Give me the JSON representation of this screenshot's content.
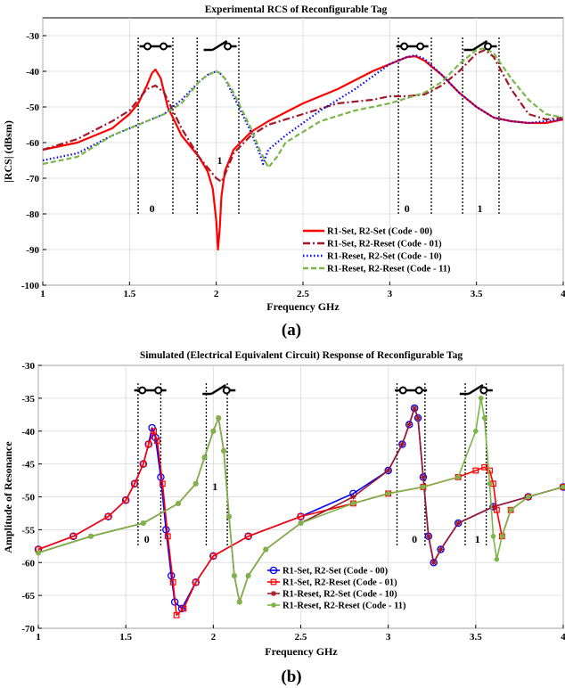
{
  "chart_data": [
    {
      "type": "line",
      "title": "Experimental RCS of Reconfigurable Tag",
      "xlabel": "Frequency GHz",
      "ylabel": "|RCS| (dBsm)",
      "xlim": [
        1,
        4
      ],
      "ylim": [
        -100,
        -25
      ],
      "xticks": [
        "1",
        "1.5",
        "2",
        "2.5",
        "3",
        "3.5",
        "4"
      ],
      "yticks": [
        "-100",
        "-90",
        "-80",
        "-70",
        "-60",
        "-50",
        "-40",
        "-30"
      ],
      "caption": "(a)",
      "legend_position": "bottom-right",
      "series": [
        {
          "name": "R1-Set, R2-Set (Code - 00)",
          "color": "#ff0000",
          "style": "solid",
          "x": [
            1,
            1.2,
            1.4,
            1.5,
            1.55,
            1.6,
            1.63,
            1.65,
            1.68,
            1.72,
            1.8,
            1.9,
            1.95,
            1.98,
            2.0,
            2.01,
            2.02,
            2.03,
            2.05,
            2.1,
            2.2,
            2.3,
            2.5,
            2.7,
            2.9,
            3.0,
            3.1,
            3.15,
            3.2,
            3.3,
            3.4,
            3.5,
            3.6,
            3.7,
            3.8,
            3.9,
            4.0
          ],
          "y": [
            -62,
            -60,
            -56,
            -52,
            -49,
            -44,
            -40.5,
            -39.5,
            -42,
            -50,
            -58,
            -64,
            -68,
            -73,
            -82,
            -90,
            -84,
            -75,
            -68,
            -62,
            -57,
            -54,
            -49,
            -45,
            -40,
            -38,
            -36,
            -35.8,
            -37,
            -41,
            -46,
            -50,
            -53,
            -54,
            -54.5,
            -54.5,
            -53.5
          ]
        },
        {
          "name": "R1-Set, R2-Reset (Code - 01)",
          "color": "#a0182a",
          "style": "dashdot",
          "x": [
            1,
            1.2,
            1.4,
            1.5,
            1.55,
            1.6,
            1.65,
            1.7,
            1.75,
            1.8,
            1.9,
            2.0,
            2.03,
            2.05,
            2.1,
            2.2,
            2.3,
            2.5,
            2.7,
            2.9,
            3.0,
            3.1,
            3.2,
            3.3,
            3.4,
            3.5,
            3.55,
            3.6,
            3.7,
            3.8,
            3.9,
            4.0
          ],
          "y": [
            -62,
            -59,
            -54,
            -51,
            -48,
            -45,
            -44,
            -46,
            -51,
            -56,
            -64,
            -70,
            -71,
            -69,
            -63,
            -58,
            -55,
            -52,
            -49,
            -48,
            -47,
            -47,
            -46.5,
            -44,
            -40,
            -35,
            -34,
            -36,
            -45,
            -52,
            -53.5,
            -53
          ]
        },
        {
          "name": "R1-Reset, R2-Set (Code - 10)",
          "color": "#0000ff",
          "style": "dotted",
          "x": [
            1,
            1.2,
            1.4,
            1.5,
            1.6,
            1.7,
            1.8,
            1.9,
            1.95,
            2.0,
            2.02,
            2.05,
            2.1,
            2.2,
            2.25,
            2.27,
            2.3,
            2.4,
            2.6,
            2.8,
            3.0,
            3.1,
            3.15,
            3.2,
            3.3,
            3.4,
            3.5,
            3.6,
            3.7,
            3.8,
            3.9,
            4.0
          ],
          "y": [
            -65,
            -63,
            -58,
            -56,
            -54,
            -52,
            -48,
            -43,
            -41,
            -40,
            -40.5,
            -42,
            -47,
            -57,
            -63,
            -66,
            -62,
            -58,
            -51,
            -45,
            -38,
            -36,
            -35.5,
            -36.5,
            -41,
            -46,
            -50,
            -53,
            -54,
            -54.5,
            -54,
            -53.5
          ]
        },
        {
          "name": "R1-Reset, R2-Reset (Code - 11)",
          "color": "#7ab648",
          "style": "dashed",
          "x": [
            1,
            1.2,
            1.4,
            1.5,
            1.6,
            1.7,
            1.8,
            1.9,
            1.95,
            2.0,
            2.02,
            2.05,
            2.1,
            2.2,
            2.25,
            2.3,
            2.35,
            2.4,
            2.6,
            2.8,
            3.0,
            3.2,
            3.3,
            3.4,
            3.5,
            3.55,
            3.6,
            3.7,
            3.8,
            3.9,
            4.0
          ],
          "y": [
            -66,
            -64,
            -58,
            -56,
            -54,
            -52,
            -49,
            -43,
            -41,
            -40,
            -40.5,
            -42,
            -46,
            -56,
            -62,
            -67,
            -64,
            -60,
            -54,
            -51,
            -49,
            -46,
            -43,
            -38,
            -34,
            -33.5,
            -35,
            -42,
            -48,
            -52,
            -53
          ]
        }
      ],
      "annotations": [
        {
          "text": "0",
          "x": 1.63,
          "y": -79.5
        },
        {
          "text": "1",
          "x": 2.02,
          "y": -66
        },
        {
          "text": "0",
          "x": 3.1,
          "y": -79.5
        },
        {
          "text": "1",
          "x": 3.52,
          "y": -79.5
        }
      ],
      "boundaries": [
        1.55,
        1.75,
        1.89,
        2.13,
        3.05,
        3.24,
        3.42,
        3.63
      ],
      "switch_icons": [
        {
          "state": "closed",
          "x": 1.65
        },
        {
          "state": "open",
          "x": 2.02
        },
        {
          "state": "closed",
          "x": 3.13
        },
        {
          "state": "open",
          "x": 3.52
        }
      ]
    },
    {
      "type": "line",
      "title": "Simulated (Electrical Equivalent Circuit) Response of Reconfigurable Tag",
      "xlabel": "Frequency GHz",
      "ylabel": "Amplitude of Resonance",
      "xlim": [
        1,
        4
      ],
      "ylim": [
        -70,
        -30
      ],
      "xticks": [
        "1",
        "1.5",
        "2",
        "2.5",
        "3",
        "3.5",
        "4"
      ],
      "yticks": [
        "-70",
        "-65",
        "-60",
        "-55",
        "-50",
        "-45",
        "-40",
        "-35",
        "-30"
      ],
      "caption": "(b)",
      "legend_position": "bottom-right",
      "series": [
        {
          "name": "R1-Set, R2-Set (Code - 00)",
          "color": "#0000ff",
          "marker": "circle",
          "x": [
            1,
            1.2,
            1.4,
            1.5,
            1.55,
            1.6,
            1.63,
            1.65,
            1.67,
            1.7,
            1.73,
            1.76,
            1.78,
            1.82,
            1.9,
            2.0,
            2.2,
            2.5,
            2.8,
            3.0,
            3.08,
            3.12,
            3.15,
            3.17,
            3.2,
            3.23,
            3.26,
            3.3,
            3.4,
            3.6,
            3.8,
            4.0
          ],
          "y": [
            -58,
            -56,
            -53,
            -50.5,
            -48,
            -45,
            -42,
            -39.5,
            -41,
            -47,
            -55,
            -62,
            -66,
            -67,
            -63,
            -59,
            -56,
            -53,
            -49.5,
            -46,
            -42,
            -39,
            -36.5,
            -38,
            -47,
            -56,
            -60,
            -58,
            -54,
            -51.5,
            -50,
            -48.5
          ]
        },
        {
          "name": "R1-Set, R2-Reset (Code - 01)",
          "color": "#ff0000",
          "marker": "square",
          "x": [
            1,
            1.2,
            1.4,
            1.5,
            1.55,
            1.6,
            1.63,
            1.66,
            1.68,
            1.71,
            1.74,
            1.77,
            1.79,
            1.83,
            1.9,
            2.0,
            2.2,
            2.5,
            2.8,
            3.0,
            3.2,
            3.4,
            3.5,
            3.55,
            3.58,
            3.6,
            3.62,
            3.65,
            3.7,
            3.8,
            4.0
          ],
          "y": [
            -58,
            -56,
            -53,
            -50.5,
            -48,
            -45,
            -42,
            -40,
            -41.5,
            -48,
            -56,
            -63,
            -68,
            -67,
            -63,
            -59,
            -56,
            -53,
            -51,
            -49.5,
            -48.5,
            -47,
            -46,
            -45.5,
            -46,
            -48,
            -52,
            -56,
            -52,
            -50,
            -48.5
          ]
        },
        {
          "name": "R1-Reset, R2-Set (Code - 10)",
          "color": "#a0182a",
          "marker": "star",
          "x": [
            1,
            1.3,
            1.6,
            1.8,
            1.9,
            1.95,
            2.0,
            2.03,
            2.06,
            2.09,
            2.12,
            2.15,
            2.2,
            2.3,
            2.5,
            2.8,
            3.0,
            3.08,
            3.12,
            3.15,
            3.17,
            3.2,
            3.23,
            3.26,
            3.3,
            3.4,
            3.6,
            3.8,
            4.0
          ],
          "y": [
            -58.5,
            -56,
            -54,
            -51,
            -48,
            -44,
            -40,
            -38,
            -43,
            -53,
            -62,
            -66,
            -62,
            -58,
            -54,
            -50,
            -46,
            -42,
            -39,
            -36.5,
            -38,
            -47,
            -56,
            -60,
            -58,
            -54,
            -51.5,
            -50,
            -48.5
          ]
        },
        {
          "name": "R1-Reset, R2-Reset (Code - 11)",
          "color": "#7ab648",
          "marker": "dot",
          "x": [
            1,
            1.3,
            1.6,
            1.8,
            1.9,
            1.95,
            2.0,
            2.03,
            2.06,
            2.09,
            2.12,
            2.15,
            2.2,
            2.3,
            2.5,
            2.8,
            3.0,
            3.2,
            3.4,
            3.5,
            3.53,
            3.55,
            3.58,
            3.6,
            3.62,
            3.65,
            3.7,
            3.8,
            4.0
          ],
          "y": [
            -58.5,
            -56,
            -54,
            -51,
            -48,
            -44,
            -40,
            -38,
            -43,
            -53,
            -62,
            -66,
            -62,
            -58,
            -54,
            -51,
            -49.5,
            -48.5,
            -47,
            -40,
            -35,
            -38,
            -48,
            -56,
            -59.5,
            -56,
            -52,
            -50,
            -48.5
          ]
        }
      ],
      "annotations": [
        {
          "text": "0",
          "x": 1.62,
          "y": -57
        },
        {
          "text": "1",
          "x": 2.01,
          "y": -49
        },
        {
          "text": "0",
          "x": 3.15,
          "y": -57
        },
        {
          "text": "1",
          "x": 3.51,
          "y": -57
        }
      ],
      "boundaries": [
        1.57,
        1.7,
        1.96,
        2.08,
        3.05,
        3.21,
        3.44,
        3.56
      ],
      "switch_icons": [
        {
          "state": "closed",
          "x": 1.64
        },
        {
          "state": "open",
          "x": 2.03
        },
        {
          "state": "closed",
          "x": 3.13
        },
        {
          "state": "open",
          "x": 3.5
        }
      ]
    }
  ]
}
